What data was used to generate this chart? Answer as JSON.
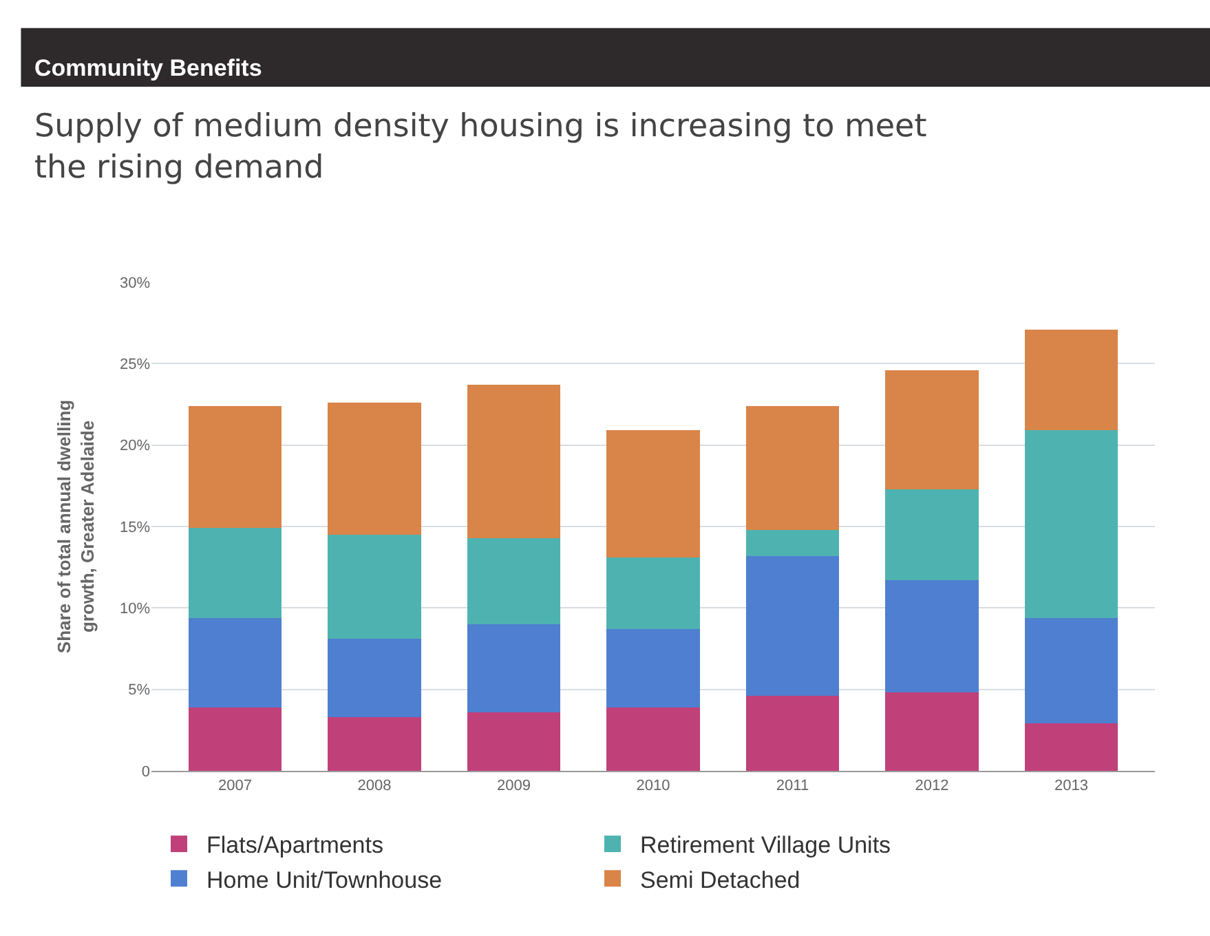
{
  "chart_data": {
    "type": "bar",
    "stacked": true,
    "title": "Community Benefits",
    "subtitle": "Supply of medium density housing is increasing to meet the rising demand",
    "ylabel": "Share of total annual dwelling\ngrowth, Greater Adelaide",
    "categories": [
      "2007",
      "2008",
      "2009",
      "2010",
      "2011",
      "2012",
      "2013"
    ],
    "series": [
      {
        "name": "Flats/Apartments",
        "color": "#c0407a",
        "values": [
          3.9,
          3.3,
          3.6,
          3.9,
          4.6,
          4.8,
          2.9
        ]
      },
      {
        "name": "Home Unit/Townhouse",
        "color": "#4f7fd0",
        "values": [
          5.5,
          4.8,
          5.4,
          4.8,
          8.6,
          6.9,
          6.5
        ]
      },
      {
        "name": "Retirement Village Units",
        "color": "#4eb3b0",
        "values": [
          5.5,
          6.4,
          5.3,
          4.4,
          1.6,
          5.6,
          11.5
        ]
      },
      {
        "name": "Semi Detached",
        "color": "#d98448",
        "values": [
          7.5,
          8.1,
          9.4,
          7.8,
          7.6,
          7.3,
          6.2
        ]
      }
    ],
    "ylim": [
      0,
      30
    ],
    "yticks": [
      0,
      {
        "value": 5,
        "label": "5%"
      },
      {
        "value": 10,
        "label": "10%"
      },
      {
        "value": 15,
        "label": "15%"
      },
      {
        "value": 20,
        "label": "20%"
      },
      {
        "value": 25,
        "label": "25%"
      },
      {
        "value": 30,
        "label": "30%"
      }
    ],
    "grid": "y",
    "legend": "bottom"
  }
}
